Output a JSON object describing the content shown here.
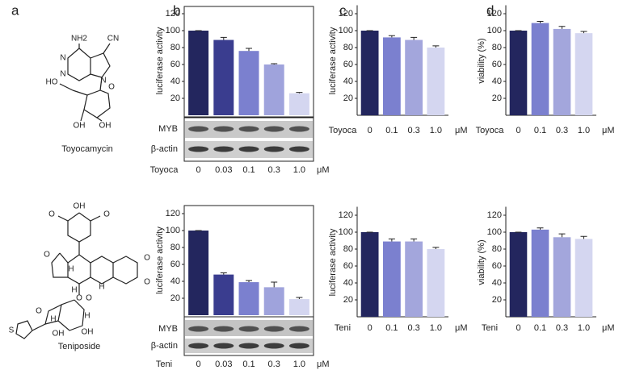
{
  "panel_labels": [
    "a",
    "b",
    "c",
    "d"
  ],
  "compounds": [
    {
      "name": "Toyocamycin",
      "atoms": [
        "NH2",
        "CN",
        "N",
        "N",
        "N",
        "HO",
        "O",
        "OH",
        "OH"
      ]
    },
    {
      "name": "Teniposide",
      "atoms": [
        "OH",
        "O",
        "O",
        "O",
        "H",
        "O",
        "O",
        "H",
        "H",
        "O",
        "S",
        "O",
        "H",
        "OH",
        "OH",
        "H",
        "O"
      ]
    }
  ],
  "chart_data": [
    {
      "type": "bar",
      "ylabel": "luciferase activity",
      "drug_label": "Toyoca",
      "unit": "μM",
      "categories": [
        "0",
        "0.03",
        "0.1",
        "0.3",
        "1.0"
      ],
      "values": [
        100,
        89,
        76,
        60,
        26
      ],
      "errors": [
        0,
        3,
        3,
        1,
        1
      ],
      "colors": [
        "#23265e",
        "#3a3d8f",
        "#7b80cf",
        "#9fa3dc",
        "#d4d6f0"
      ],
      "ylim": [
        0,
        130
      ],
      "yticks": [
        20,
        40,
        60,
        80,
        100,
        120
      ],
      "blot_labels": [
        "MYB",
        "β-actin"
      ]
    },
    {
      "type": "bar",
      "ylabel": "luciferase activity",
      "drug_label": "Teni",
      "unit": "μM",
      "categories": [
        "0",
        "0.03",
        "0.1",
        "0.3",
        "1.0"
      ],
      "values": [
        100,
        48,
        39,
        33,
        19
      ],
      "errors": [
        0,
        2,
        2,
        6,
        2
      ],
      "colors": [
        "#23265e",
        "#3a3d8f",
        "#7b80cf",
        "#9fa3dc",
        "#d4d6f0"
      ],
      "ylim": [
        0,
        130
      ],
      "yticks": [
        20,
        40,
        60,
        80,
        100,
        120
      ],
      "blot_labels": [
        "MYB",
        "β-actin"
      ]
    },
    {
      "type": "bar",
      "ylabel": "luciferase activity",
      "drug_label": "Toyoca",
      "unit": "μM",
      "categories": [
        "0",
        "0.1",
        "0.3",
        "1.0"
      ],
      "values": [
        100,
        92,
        89,
        80
      ],
      "errors": [
        0,
        2,
        3,
        2
      ],
      "colors": [
        "#23265e",
        "#7b80cf",
        "#a3a6dc",
        "#d4d6f0"
      ],
      "ylim": [
        0,
        130
      ],
      "yticks": [
        20,
        40,
        60,
        80,
        100,
        120
      ]
    },
    {
      "type": "bar",
      "ylabel": "luciferase activity",
      "drug_label": "Teni",
      "unit": "μM",
      "categories": [
        "0",
        "0.1",
        "0.3",
        "1.0"
      ],
      "values": [
        100,
        89,
        89,
        80
      ],
      "errors": [
        0,
        3,
        3,
        2
      ],
      "colors": [
        "#23265e",
        "#7b80cf",
        "#a3a6dc",
        "#d4d6f0"
      ],
      "ylim": [
        0,
        130
      ],
      "yticks": [
        20,
        40,
        60,
        80,
        100,
        120
      ]
    },
    {
      "type": "bar",
      "ylabel": "viability (%)",
      "drug_label": "Toyoca",
      "unit": "μM",
      "categories": [
        "0",
        "0.1",
        "0.3",
        "1.0"
      ],
      "values": [
        100,
        109,
        102,
        97
      ],
      "errors": [
        0,
        2,
        3,
        2
      ],
      "colors": [
        "#23265e",
        "#7b80cf",
        "#a3a6dc",
        "#d4d6f0"
      ],
      "ylim": [
        0,
        130
      ],
      "yticks": [
        20,
        40,
        60,
        80,
        100,
        120
      ]
    },
    {
      "type": "bar",
      "ylabel": "viability (%)",
      "drug_label": "Teni",
      "unit": "μM",
      "categories": [
        "0",
        "0.1",
        "0.3",
        "1.0"
      ],
      "values": [
        100,
        103,
        94,
        92
      ],
      "errors": [
        0,
        2,
        4,
        3
      ],
      "colors": [
        "#23265e",
        "#7b80cf",
        "#a3a6dc",
        "#d4d6f0"
      ],
      "ylim": [
        0,
        130
      ],
      "yticks": [
        20,
        40,
        60,
        80,
        100,
        120
      ]
    }
  ]
}
